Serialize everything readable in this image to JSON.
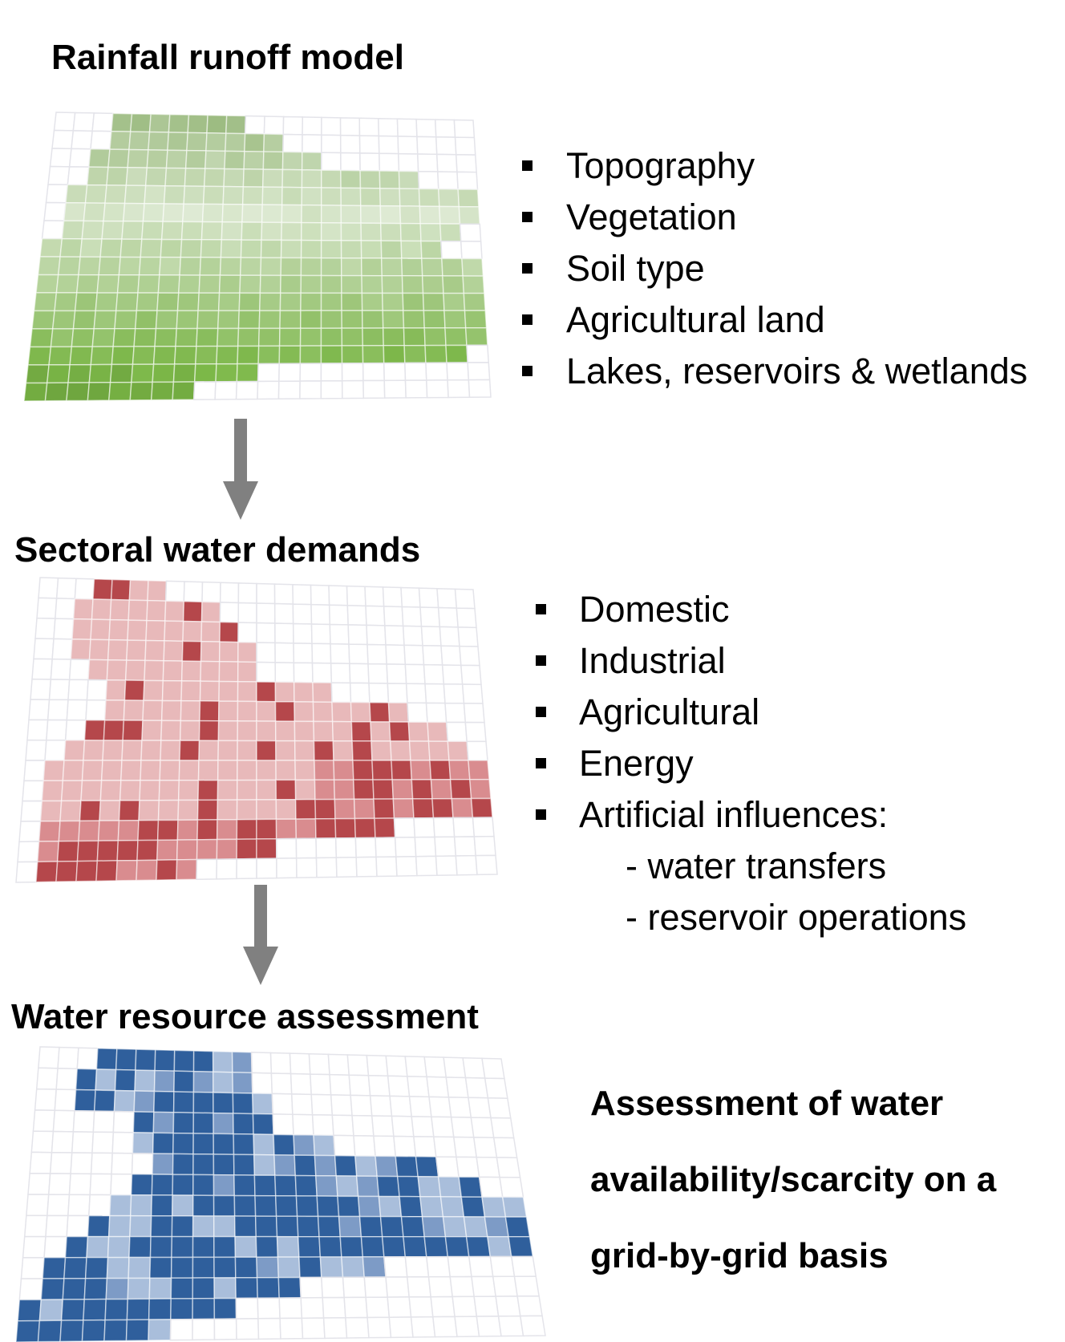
{
  "sections": [
    {
      "title": "Rainfall runoff model",
      "items": [
        "Topography",
        "Vegetation",
        "Soil type",
        "Agricultural land",
        "Lakes, reservoirs & wetlands"
      ]
    },
    {
      "title": "Sectoral water demands",
      "items": [
        "Domestic",
        "Industrial",
        "Agricultural",
        "Energy",
        "Artificial influences:"
      ],
      "subitems": [
        "- water transfers",
        "- reservoir operations"
      ]
    },
    {
      "title": "Water resource assessment",
      "text_lines": [
        "Assessment of water",
        "availability/scarcity on a",
        "grid-by-grid basis"
      ]
    }
  ]
}
